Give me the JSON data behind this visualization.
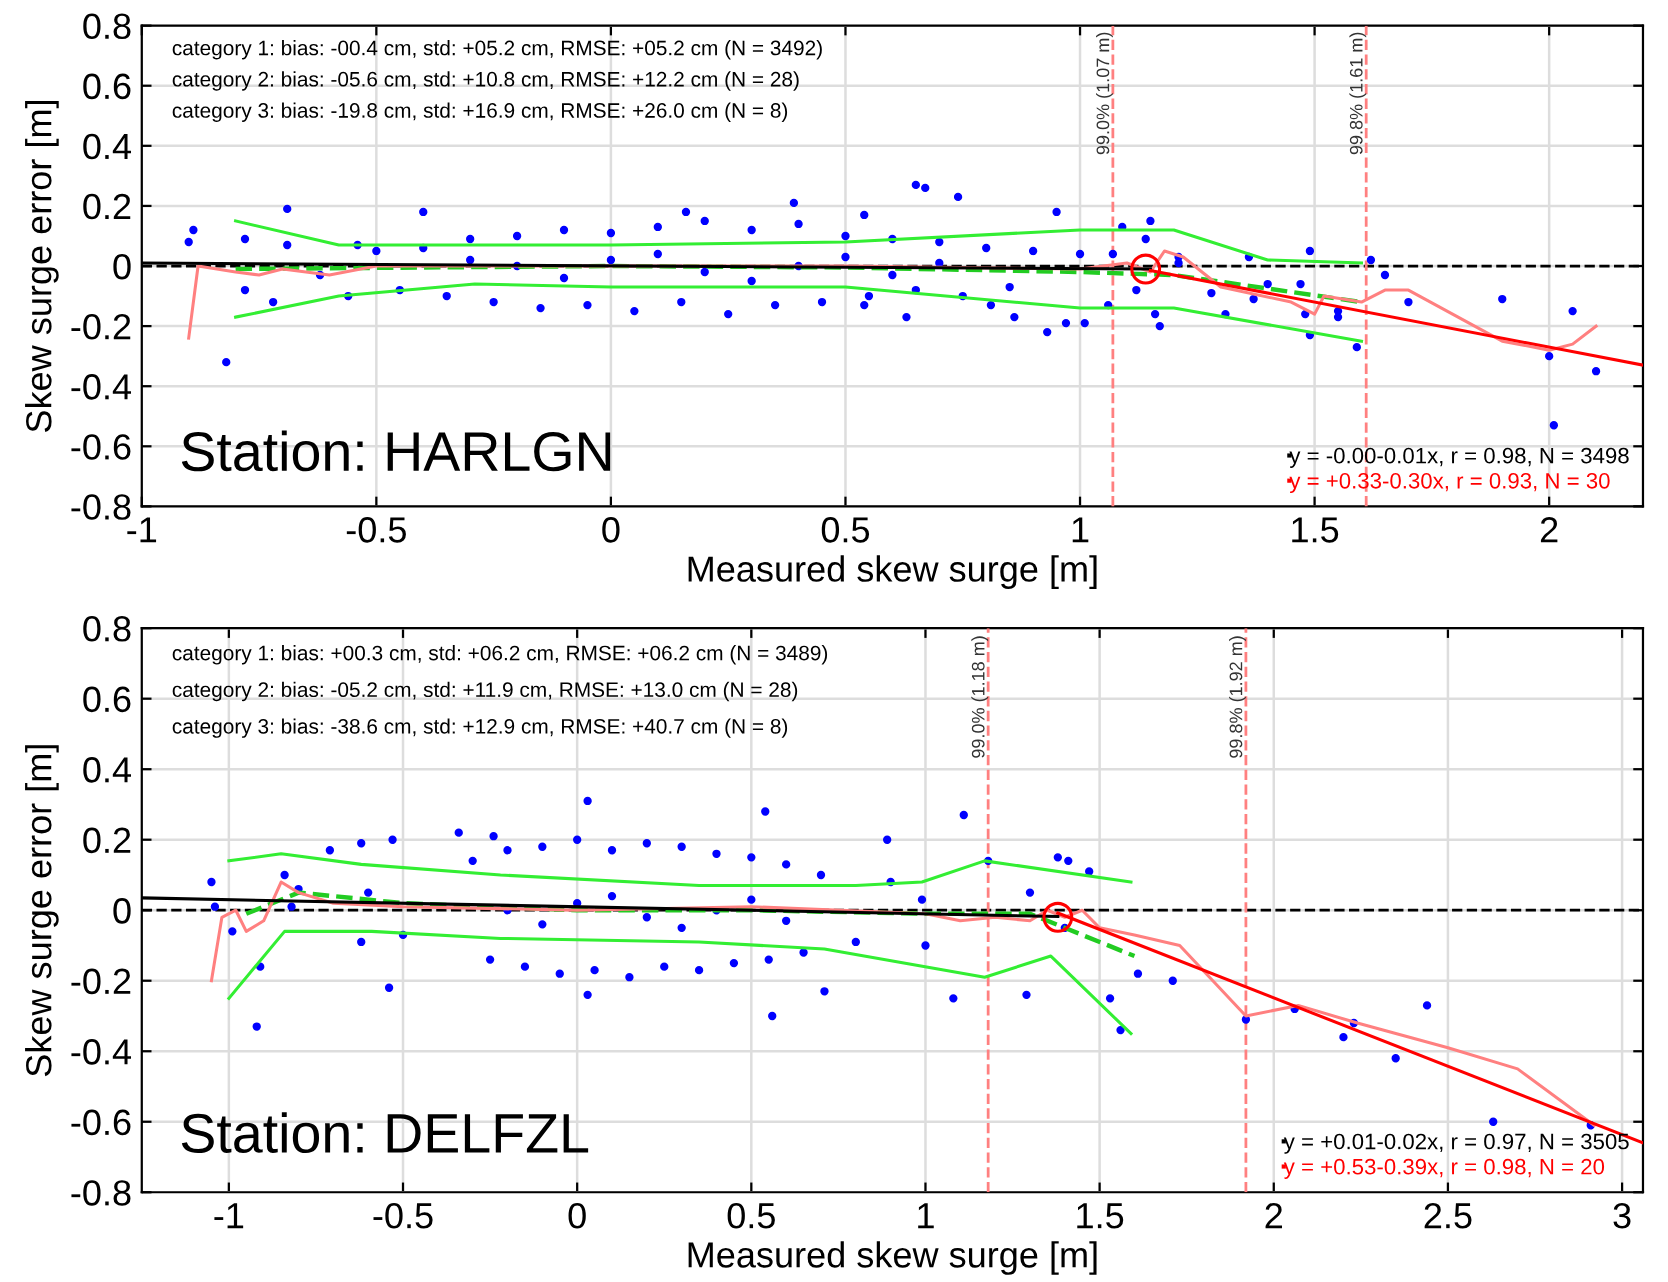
{
  "chart_data": [
    {
      "type": "scatter",
      "xlabel": "Measured skew surge [m]",
      "ylabel": "Skew surge error [m]",
      "xlim": [
        -1,
        2.2
      ],
      "ylim": [
        -0.8,
        0.8
      ],
      "xticks": [
        -1,
        -0.5,
        0,
        0.5,
        1,
        1.5,
        2
      ],
      "yticks": [
        -0.8,
        -0.6,
        -0.4,
        -0.2,
        0,
        0.2,
        0.4,
        0.6,
        0.8
      ],
      "grid": true,
      "legend": "bottom right",
      "annotations": [
        "category 1: bias: -00.4 cm, std: +05.2 cm, RMSE: +05.2 cm (N = 3492)",
        "category 2: bias: -05.6 cm, std: +10.8 cm, RMSE: +12.2 cm (N = 28)",
        "category 3: bias: -19.8 cm, std: +16.9 cm, RMSE: +26.0 cm (N = 8)",
        "Station: HARLGN"
      ],
      "ref_lines": [
        {
          "axis": "y",
          "value": 0,
          "label": null,
          "color": "#000000",
          "line_style": "dashed"
        },
        {
          "axis": "x",
          "value": 1.07,
          "label": "99.0% (1.07 m)",
          "color": "#ff8080",
          "line_style": "dashed"
        },
        {
          "axis": "x",
          "value": 1.61,
          "label": "99.8% (1.61 m)",
          "color": "#ff8080",
          "line_style": "dashed"
        }
      ],
      "series": [
        {
          "color": "#0000ff",
          "marker": "circle",
          "x": [
            -0.9,
            -0.89,
            -0.82,
            -0.78,
            -0.78,
            -0.69,
            -0.69,
            -0.72,
            -0.56,
            -0.4,
            -0.54,
            -0.62,
            0.16,
            0.39,
            0.65,
            0.67,
            0.74,
            0.54,
            0.54,
            0.63,
            0.81,
            0.86,
            0.93,
            0.95,
            1.09,
            1.15,
            1.14,
            1.07,
            1.0,
            1.12,
            1.16,
            1.17,
            1.01,
            0.97,
            1.06,
            1.28,
            1.31,
            1.36,
            1.4,
            1.37,
            1.49,
            1.47,
            1.48,
            1.49,
            1.55,
            1.55,
            1.59,
            1.62,
            1.65,
            1.7,
            1.9,
            2.0,
            2.01,
            2.05,
            2.1,
            1.21,
            1.21,
            -0.5,
            -0.45,
            -0.4,
            -0.35,
            -0.3,
            -0.25,
            -0.2,
            -0.15,
            -0.1,
            -0.05,
            0,
            0.05,
            0.1,
            0.15,
            0.2,
            0.25,
            0.3,
            0.35,
            0.4,
            0.45,
            0.5,
            0.55,
            0.6,
            0.65,
            0.7,
            0.75,
            0.8,
            0.85,
            0.9,
            -0.2,
            0,
            0.2,
            0.4,
            -0.1,
            0.1,
            0.3,
            0.5,
            0.6,
            -0.3,
            0.7
          ],
          "values": [
            0.08,
            0.12,
            -0.32,
            0.09,
            -0.08,
            0.19,
            0.07,
            -0.12,
            -0.1,
            0.18,
            0.07,
            -0.03,
            0.18,
            0.21,
            0.27,
            0.26,
            0.23,
            0.17,
            -0.13,
            -0.17,
            -0.13,
            -0.17,
            -0.22,
            0.18,
            0.13,
            0.15,
            0.09,
            0.04,
            0.04,
            -0.08,
            -0.16,
            -0.2,
            -0.19,
            -0.19,
            -0.13,
            -0.09,
            -0.16,
            0.03,
            -0.06,
            -0.11,
            0.05,
            -0.06,
            -0.16,
            -0.23,
            -0.15,
            -0.17,
            -0.27,
            0.02,
            -0.03,
            -0.12,
            -0.11,
            -0.3,
            -0.53,
            -0.15,
            -0.35,
            0.03,
            0.01,
            0.05,
            -0.08,
            0.06,
            -0.1,
            0.09,
            -0.12,
            0.1,
            -0.14,
            0.12,
            -0.13,
            0.11,
            -0.15,
            0.13,
            -0.12,
            0.15,
            -0.16,
            0.12,
            -0.13,
            0.14,
            -0.12,
            0.1,
            -0.1,
            0.09,
            -0.08,
            0.08,
            -0.1,
            0.06,
            -0.07,
            0.05,
            0,
            0.02,
            -0.02,
            0,
            -0.04,
            0.04,
            -0.05,
            0.03,
            -0.03,
            0.02,
            0.01
          ]
        },
        {
          "type": "line",
          "color": "#33ee33",
          "x": [
            -0.8,
            -0.58,
            -0.29,
            0,
            0.5,
            1.0,
            1.2,
            1.4,
            1.6
          ],
          "values": [
            0.15,
            0.07,
            0.07,
            0.07,
            0.08,
            0.12,
            0.12,
            0.02,
            0.01
          ]
        },
        {
          "type": "line",
          "color": "#33ee33",
          "x": [
            -0.8,
            -0.58,
            -0.29,
            0,
            0.5,
            1.0,
            1.2,
            1.6
          ],
          "values": [
            -0.17,
            -0.1,
            -0.06,
            -0.07,
            -0.07,
            -0.14,
            -0.14,
            -0.25
          ]
        },
        {
          "type": "line",
          "color": "#22cc22",
          "line_style": "dashed",
          "x": [
            -0.8,
            0,
            0.5,
            1.0,
            1.2,
            1.6
          ],
          "values": [
            -0.01,
            0,
            -0.005,
            -0.02,
            -0.03,
            -0.12
          ]
        },
        {
          "type": "line",
          "color": "#ff8080",
          "x": [
            -0.9,
            -0.88,
            -0.8,
            -0.75,
            -0.7,
            -0.6,
            -0.5,
            0,
            0.5,
            1.0,
            1.1,
            1.15,
            1.18,
            1.22,
            1.3,
            1.45,
            1.5,
            1.52,
            1.6,
            1.65,
            1.7,
            1.9,
            2.0,
            2.05,
            2.1
          ],
          "values": [
            -0.24,
            0,
            -0.02,
            -0.03,
            -0.01,
            -0.03,
            0,
            0,
            0,
            -0.01,
            0.01,
            -0.02,
            0.05,
            0.03,
            -0.07,
            -0.12,
            -0.16,
            -0.1,
            -0.12,
            -0.08,
            -0.08,
            -0.25,
            -0.28,
            -0.26,
            -0.2
          ]
        },
        {
          "type": "line",
          "color": "#000000",
          "name": "y = -0.00-0.01x, r = 0.98, N = 3498",
          "x": [
            -1,
            1.15
          ],
          "values": [
            0.01,
            -0.01
          ]
        },
        {
          "type": "line",
          "color": "#ff0000",
          "name": "y = +0.33-0.30x, r = 0.93, N = 30",
          "x": [
            1.15,
            2.2
          ],
          "values": [
            -0.015,
            -0.33
          ]
        },
        {
          "type": "line",
          "color": "#ff0000",
          "marker": "circle",
          "x": [
            1.14
          ],
          "values": [
            -0.01
          ]
        }
      ]
    },
    {
      "type": "scatter",
      "xlabel": "Measured skew surge [m]",
      "ylabel": "Skew surge error [m]",
      "xlim": [
        -1.25,
        3.06
      ],
      "ylim": [
        -0.8,
        0.8
      ],
      "xticks": [
        -1,
        -0.5,
        0,
        0.5,
        1,
        1.5,
        2,
        2.5,
        3
      ],
      "yticks": [
        -0.8,
        -0.6,
        -0.4,
        -0.2,
        0,
        0.2,
        0.4,
        0.6,
        0.8
      ],
      "grid": true,
      "legend": "bottom right",
      "annotations": [
        "category 1: bias: +00.3 cm, std: +06.2 cm, RMSE: +06.2 cm (N = 3489)",
        "category 2: bias: -05.2 cm, std: +11.9 cm, RMSE: +13.0 cm (N = 28)",
        "category 3: bias: -38.6 cm, std: +12.9 cm, RMSE: +40.7 cm (N = 8)",
        "Station: DELFZL"
      ],
      "ref_lines": [
        {
          "axis": "y",
          "value": 0,
          "label": null,
          "color": "#000000",
          "line_style": "dashed"
        },
        {
          "axis": "x",
          "value": 1.18,
          "label": "99.0% (1.18 m)",
          "color": "#ff8080",
          "line_style": "dashed"
        },
        {
          "axis": "x",
          "value": 1.92,
          "label": "99.8% (1.92 m)",
          "color": "#ff8080",
          "line_style": "dashed"
        }
      ],
      "series": [
        {
          "color": "#0000ff",
          "marker": "circle",
          "x": [
            -1.05,
            -1.04,
            -0.99,
            -0.92,
            -0.91,
            -0.84,
            -0.82,
            -0.71,
            -0.62,
            -0.53,
            -0.62,
            -0.54,
            -0.34,
            -0.24,
            0.03,
            0.03,
            0.54,
            0.56,
            0.71,
            0.89,
            0.99,
            1.11,
            1.18,
            1.08,
            1.29,
            1.38,
            1.41,
            1.47,
            1.53,
            1.56,
            1.61,
            1.71,
            1.92,
            2.06,
            2.23,
            2.2,
            2.35,
            2.44,
            2.63,
            2.91,
            -0.3,
            -0.25,
            -0.2,
            -0.15,
            -0.1,
            -0.05,
            0,
            0.05,
            0.1,
            0.15,
            0.2,
            0.25,
            0.3,
            0.35,
            0.4,
            0.45,
            0.5,
            0.55,
            0.6,
            0.65,
            0.7,
            -0.8,
            -0.6,
            -0.5,
            0.8,
            0.9,
            1.0,
            -0.2,
            0,
            0.2,
            0.4,
            -0.1,
            0.1,
            0.3,
            0.5,
            0.6,
            1.3,
            1.4
          ],
          "values": [
            0.08,
            0.01,
            -0.06,
            -0.33,
            -0.16,
            0.1,
            0.01,
            0.17,
            0.19,
            0.2,
            -0.09,
            -0.22,
            0.22,
            0.21,
            0.31,
            -0.24,
            0.28,
            -0.3,
            -0.23,
            0.2,
            0.03,
            0.27,
            0.14,
            -0.25,
            -0.24,
            0.15,
            0.14,
            0.11,
            -0.25,
            -0.34,
            -0.18,
            -0.2,
            -0.31,
            -0.28,
            -0.32,
            -0.36,
            -0.42,
            -0.27,
            -0.6,
            -0.61,
            0.14,
            -0.14,
            0.17,
            -0.16,
            0.18,
            -0.18,
            0.2,
            -0.17,
            0.17,
            -0.19,
            0.19,
            -0.16,
            0.18,
            -0.17,
            0.16,
            -0.15,
            0.15,
            -0.14,
            0.13,
            -0.12,
            0.1,
            0.06,
            0.05,
            -0.07,
            -0.09,
            0.08,
            -0.1,
            0,
            0.02,
            -0.02,
            0,
            -0.04,
            0.04,
            -0.05,
            0.03,
            -0.03,
            0.05,
            -0.05
          ]
        },
        {
          "type": "line",
          "color": "#33ee33",
          "x": [
            -1.0,
            -0.85,
            -0.62,
            -0.22,
            0.35,
            0.8,
            0.99,
            1.17,
            1.59
          ],
          "values": [
            0.14,
            0.16,
            0.13,
            0.1,
            0.07,
            0.07,
            0.08,
            0.14,
            0.08
          ]
        },
        {
          "type": "line",
          "color": "#33ee33",
          "x": [
            -1.0,
            -0.84,
            -0.59,
            -0.22,
            0.35,
            0.71,
            1.17,
            1.36,
            1.59
          ],
          "values": [
            -0.25,
            -0.06,
            -0.06,
            -0.08,
            -0.09,
            -0.11,
            -0.19,
            -0.13,
            -0.35
          ]
        },
        {
          "type": "line",
          "color": "#22cc22",
          "line_style": "dashed",
          "x": [
            -0.95,
            -0.8,
            -0.5,
            0,
            0.5,
            1.0,
            1.3,
            1.6
          ],
          "values": [
            -0.01,
            0.05,
            0.02,
            0,
            0,
            -0.01,
            -0.01,
            -0.13
          ]
        },
        {
          "type": "line",
          "color": "#ff8080",
          "x": [
            -1.05,
            -1.02,
            -0.98,
            -0.95,
            -0.9,
            -0.85,
            -0.8,
            -0.7,
            -0.5,
            0,
            0.5,
            1.0,
            1.1,
            1.2,
            1.3,
            1.35,
            1.4,
            1.45,
            1.5,
            1.6,
            1.73,
            1.92,
            2.07,
            2.24,
            2.5,
            2.7,
            2.92
          ],
          "values": [
            -0.2,
            -0.02,
            0,
            -0.06,
            -0.03,
            0.08,
            0.05,
            0.02,
            0.01,
            0,
            0.01,
            -0.01,
            -0.03,
            -0.02,
            -0.03,
            0,
            -0.02,
            0,
            -0.05,
            -0.07,
            -0.1,
            -0.3,
            -0.27,
            -0.32,
            -0.39,
            -0.45,
            -0.61
          ]
        },
        {
          "type": "line",
          "color": "#000000",
          "name": "y = +0.01-0.02x, r = 0.97, N = 3505",
          "x": [
            -1.25,
            1.38
          ],
          "values": [
            0.035,
            -0.018
          ]
        },
        {
          "type": "line",
          "color": "#ff0000",
          "name": "y = +0.53-0.39x, r = 0.98, N = 20",
          "x": [
            1.38,
            3.06
          ],
          "values": [
            -0.008,
            -0.66
          ]
        },
        {
          "type": "line",
          "color": "#ff0000",
          "marker": "circle",
          "x": [
            1.38
          ],
          "values": [
            -0.02
          ]
        }
      ]
    }
  ]
}
